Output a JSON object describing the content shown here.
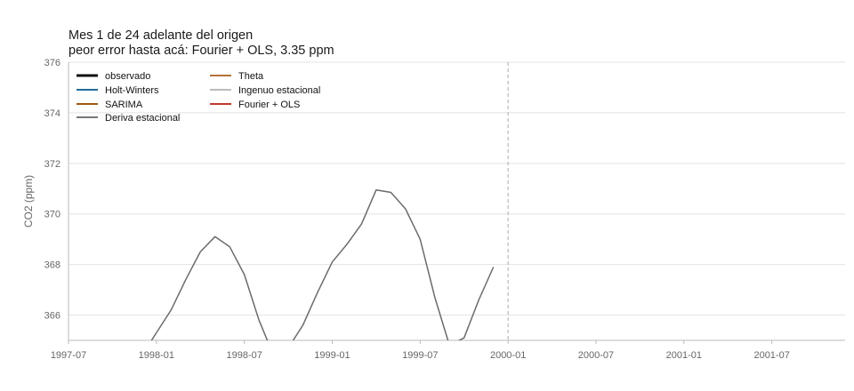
{
  "chart_data": {
    "type": "line",
    "title_line1": "Mes 1 de 24 adelante del origen",
    "title_line2": "peor error hasta acá: Fourier + OLS, 3.35 ppm",
    "ylabel": "CO2 (ppm)",
    "xlabel": "",
    "x_range": [
      "1997-07",
      "2001-12"
    ],
    "ylim": [
      365,
      376
    ],
    "y_ticks": [
      366,
      368,
      370,
      372,
      374,
      376
    ],
    "x_ticks": [
      "1997-07",
      "1998-01",
      "1998-07",
      "1999-01",
      "1999-07",
      "2000-01",
      "2000-07",
      "2001-01",
      "2001-07"
    ],
    "forecast_origin": "2000-01",
    "grid": "horizontal",
    "legend_position": "top-left",
    "legend": [
      {
        "name": "observado",
        "color": "#111111",
        "width": 3
      },
      {
        "name": "Theta",
        "color": "#b5723a",
        "width": 2
      },
      {
        "name": "Holt-Winters",
        "color": "#1f6f9a",
        "width": 2
      },
      {
        "name": "Ingenuo estacional",
        "color": "#bbbbbb",
        "width": 2
      },
      {
        "name": "SARIMA",
        "color": "#9a5a10",
        "width": 2
      },
      {
        "name": "Fourier + OLS",
        "color": "#c0392b",
        "width": 2
      },
      {
        "name": "Deriva estacional",
        "color": "#777777",
        "width": 2
      }
    ],
    "series": [
      {
        "name": "Deriva estacional",
        "color": "#6b6b6b",
        "x": [
          "1997-11",
          "1997-12",
          "1998-01",
          "1998-02",
          "1998-03",
          "1998-04",
          "1998-05",
          "1998-06",
          "1998-07",
          "1998-08",
          "1998-09",
          "1998-10",
          "1998-11",
          "1998-12",
          "1999-01",
          "1999-02",
          "1999-03",
          "1999-04",
          "1999-05",
          "1999-06",
          "1999-07",
          "1999-08",
          "1999-09",
          "1999-10",
          "1999-11",
          "1999-12"
        ],
        "y": [
          363.8,
          364.4,
          365.3,
          366.2,
          367.4,
          368.5,
          369.1,
          368.7,
          367.6,
          365.8,
          364.4,
          364.7,
          365.6,
          366.9,
          368.1,
          368.8,
          369.6,
          370.95,
          370.85,
          370.2,
          369.0,
          366.7,
          364.8,
          365.1,
          366.6,
          367.9
        ]
      }
    ]
  }
}
